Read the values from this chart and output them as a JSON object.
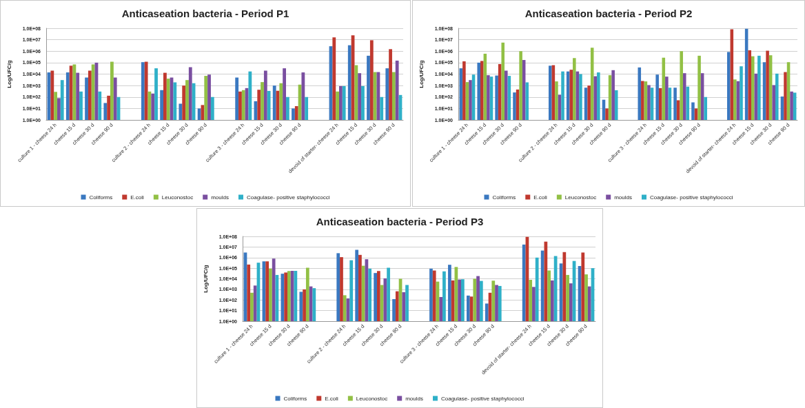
{
  "chart_data": [
    {
      "type": "bar",
      "title": "Anticaseation bacteria - Period P1",
      "ylabel": "Log/UFC/g",
      "categories": [
        "culture 1 - cheese 24 h",
        "cheese 15 d",
        "cheese 30 d",
        "cheese 90 d",
        null,
        "culture 2 - cheese 24 h",
        "cheese 15 d",
        "cheese 30 d",
        "cheese 90 d",
        null,
        "culture 3 - cheese 24 h",
        "cheese 15 d",
        "cheese 30 d",
        "cheese 90 d",
        null,
        "devoid of starter- cheese 24 h",
        "cheese 15 d",
        "cheese 30 d",
        "cheese 90 d"
      ],
      "series": [
        {
          "name": "Coliforms",
          "color": "#3a78c0",
          "values": [
            14000,
            14000,
            5000,
            30,
            null,
            110000,
            400,
            26,
            10,
            null,
            5000,
            43,
            1000,
            10,
            null,
            2700000,
            3300000,
            400000,
            32000
          ]
        },
        {
          "name": "E.coli",
          "color": "#c0392f",
          "values": [
            20000,
            54000,
            20000,
            130,
            null,
            120000,
            13000,
            1000,
            20,
            null,
            300,
            430,
            350,
            16,
            null,
            16000000,
            24000000,
            9000000,
            1500000
          ]
        },
        {
          "name": "Leuconostoc",
          "color": "#92c045",
          "values": [
            280,
            70000,
            70000,
            120000,
            null,
            300,
            4000,
            3000,
            7000,
            null,
            400,
            2000,
            1600,
            1200,
            null,
            300,
            60000,
            15000,
            15000
          ]
        },
        {
          "name": "moulds",
          "color": "#7a4fa0",
          "values": [
            80,
            13000,
            100000,
            5000,
            null,
            200,
            5000,
            40000,
            9000,
            null,
            600,
            20000,
            32000,
            14000,
            null,
            900,
            12000,
            15000,
            150000
          ]
        },
        {
          "name": "Coagulase- positive staphylococci",
          "color": "#2fb0c8",
          "values": [
            3000,
            300,
            300,
            100,
            null,
            32000,
            1900,
            1600,
            100,
            null,
            17000,
            340,
            100,
            100,
            null,
            900,
            900,
            100,
            150
          ]
        }
      ],
      "log": "y",
      "ylim": [
        1,
        100000000
      ],
      "yticks": [
        {
          "value": 1,
          "label": "1.0E+00"
        },
        {
          "value": 10,
          "label": "1.0E+01"
        },
        {
          "value": 100,
          "label": "1.0E+02"
        },
        {
          "value": 1000,
          "label": "1.0E+03"
        },
        {
          "value": 10000,
          "label": "1.0E+04"
        },
        {
          "value": 100000,
          "label": "1.0E+05"
        },
        {
          "value": 1000000,
          "label": "1.0E+06"
        },
        {
          "value": 10000000,
          "label": "1.0E+07"
        },
        {
          "value": 100000000,
          "label": "1.0E+08"
        }
      ],
      "grid": "y",
      "legend": "bottom"
    },
    {
      "type": "bar",
      "title": "Anticaseation bacteria - Period P2",
      "ylabel": "Log/UFC/g",
      "categories": [
        "culture 1 - cheese 24 h",
        "cheese 15 d",
        "cheese 30 d",
        "cheese 90 d",
        null,
        "culture 2 - cheese 24 h",
        "cheese 15 d",
        "cheese 30 d",
        "cheese 90 d",
        null,
        "culture 3 - cheese 24 h",
        "cheese 15 d",
        "cheese 30 d",
        "cheese 90 d",
        null,
        "devoid of starter- cheese 24 h",
        "cheese 15 d",
        "cheese 30 d",
        "cheese 90 d"
      ],
      "series": [
        {
          "name": "Coliforms",
          "color": "#3a78c0",
          "values": [
            32000,
            100000,
            7500,
            250,
            null,
            54000,
            17000,
            650,
            58,
            null,
            38000,
            9000,
            650,
            34,
            null,
            850000,
            90000000,
            110000,
            110
          ]
        },
        {
          "name": "E.coli",
          "color": "#c0392f",
          "values": [
            130000,
            140000,
            75000,
            450,
            null,
            60000,
            24000,
            1000,
            10,
            null,
            2500,
            600,
            52,
            10,
            null,
            80000000,
            1200000,
            1100000,
            15000
          ]
        },
        {
          "name": "Leuconostoc",
          "color": "#92c045",
          "values": [
            2000,
            600000,
            5600000,
            1000000,
            null,
            2300,
            250000,
            2000000,
            8000,
            null,
            2300,
            270000,
            1000000,
            400000,
            null,
            3400,
            360000,
            440000,
            110000
          ]
        },
        {
          "name": "moulds",
          "color": "#7a4fa0",
          "values": [
            3000,
            8000,
            20000,
            170000,
            null,
            160,
            17000,
            6500,
            22000,
            null,
            1100,
            6000,
            12000,
            12000,
            null,
            2400,
            11000,
            1100,
            300
          ]
        },
        {
          "name": "Coagulase- positive staphylococci",
          "color": "#2fb0c8",
          "values": [
            9000,
            6000,
            7000,
            1900,
            null,
            17000,
            10000,
            14000,
            390,
            null,
            650,
            650,
            800,
            100,
            null,
            48000,
            400000,
            11000,
            240
          ]
        }
      ],
      "log": "y",
      "ylim": [
        1,
        100000000
      ],
      "yticks": [
        {
          "value": 1,
          "label": "1.0E+00"
        },
        {
          "value": 10,
          "label": "1.0E+01"
        },
        {
          "value": 100,
          "label": "1.0E+02"
        },
        {
          "value": 1000,
          "label": "1.0E+03"
        },
        {
          "value": 10000,
          "label": "1.0E+04"
        },
        {
          "value": 100000,
          "label": "1.0E+05"
        },
        {
          "value": 1000000,
          "label": "1.0E+06"
        },
        {
          "value": 10000000,
          "label": "1.0E+07"
        },
        {
          "value": 100000000,
          "label": "1.0E+08"
        }
      ],
      "grid": "y",
      "legend": "bottom"
    },
    {
      "type": "bar",
      "title": "Anticaseation bacteria - Period P3",
      "ylabel": "Log/UFC/g",
      "categories": [
        "culture 1 - cheese 24 h",
        "cheese 15 d",
        "cheese 30 d",
        "cheese 90 d",
        null,
        "culture 2 - cheese 24 h",
        "cheese 15 d",
        "cheese 30 d",
        "cheese 90 d",
        null,
        "culture 3 - cheese 24 h",
        "cheese 15 d",
        "cheese 30 d",
        "cheese 90 d",
        null,
        "devoid of starter- cheese 24 h",
        "cheese 15 d",
        "cheese 30 d",
        "cheese 90 d"
      ],
      "series": [
        {
          "name": "Coliforms",
          "color": "#3a78c0",
          "values": [
            3000000,
            440000,
            30000,
            590,
            null,
            2600000,
            5400000,
            35000,
            120,
            null,
            90000,
            210000,
            260,
            46,
            null,
            17000000,
            4600000,
            280000,
            160000
          ]
        },
        {
          "name": "E.coli",
          "color": "#c0392f",
          "values": [
            220000,
            440000,
            39000,
            1000,
            null,
            1100000,
            1800000,
            54000,
            660,
            null,
            60000,
            7000,
            210,
            480,
            null,
            90000000,
            32000000,
            3300000,
            3000000
          ]
        },
        {
          "name": "Leuconostoc",
          "color": "#92c045",
          "values": [
            480,
            90000,
            54000,
            110000,
            null,
            280,
            170000,
            2600,
            10000,
            null,
            5400,
            130000,
            10000,
            6600,
            null,
            8000,
            60000,
            23000,
            26000
          ]
        },
        {
          "name": "moulds",
          "color": "#7a4fa0",
          "values": [
            2300,
            800000,
            56000,
            1900,
            null,
            140,
            700000,
            11000,
            540,
            null,
            190,
            8500,
            18000,
            2600,
            null,
            1700,
            7000,
            3700,
            1900
          ]
        },
        {
          "name": "Coagulase- positive staphylococci",
          "color": "#2fb0c8",
          "values": [
            330000,
            23000,
            56000,
            1300,
            null,
            560000,
            90000,
            110000,
            2600,
            null,
            50000,
            9000,
            6300,
            2100,
            null,
            1000000,
            1400000,
            480000,
            100000
          ]
        }
      ],
      "log": "y",
      "ylim": [
        1,
        100000000
      ],
      "yticks": [
        {
          "value": 1,
          "label": "1.0E+00"
        },
        {
          "value": 10,
          "label": "1.0E+01"
        },
        {
          "value": 100,
          "label": "1.0E+02"
        },
        {
          "value": 1000,
          "label": "1.0E+03"
        },
        {
          "value": 10000,
          "label": "1.0E+04"
        },
        {
          "value": 100000,
          "label": "1.0E+05"
        },
        {
          "value": 1000000,
          "label": "1.0E+06"
        },
        {
          "value": 10000000,
          "label": "1.0E+07"
        },
        {
          "value": 100000000,
          "label": "1.0E+08"
        }
      ],
      "grid": "y",
      "legend": "bottom"
    }
  ]
}
